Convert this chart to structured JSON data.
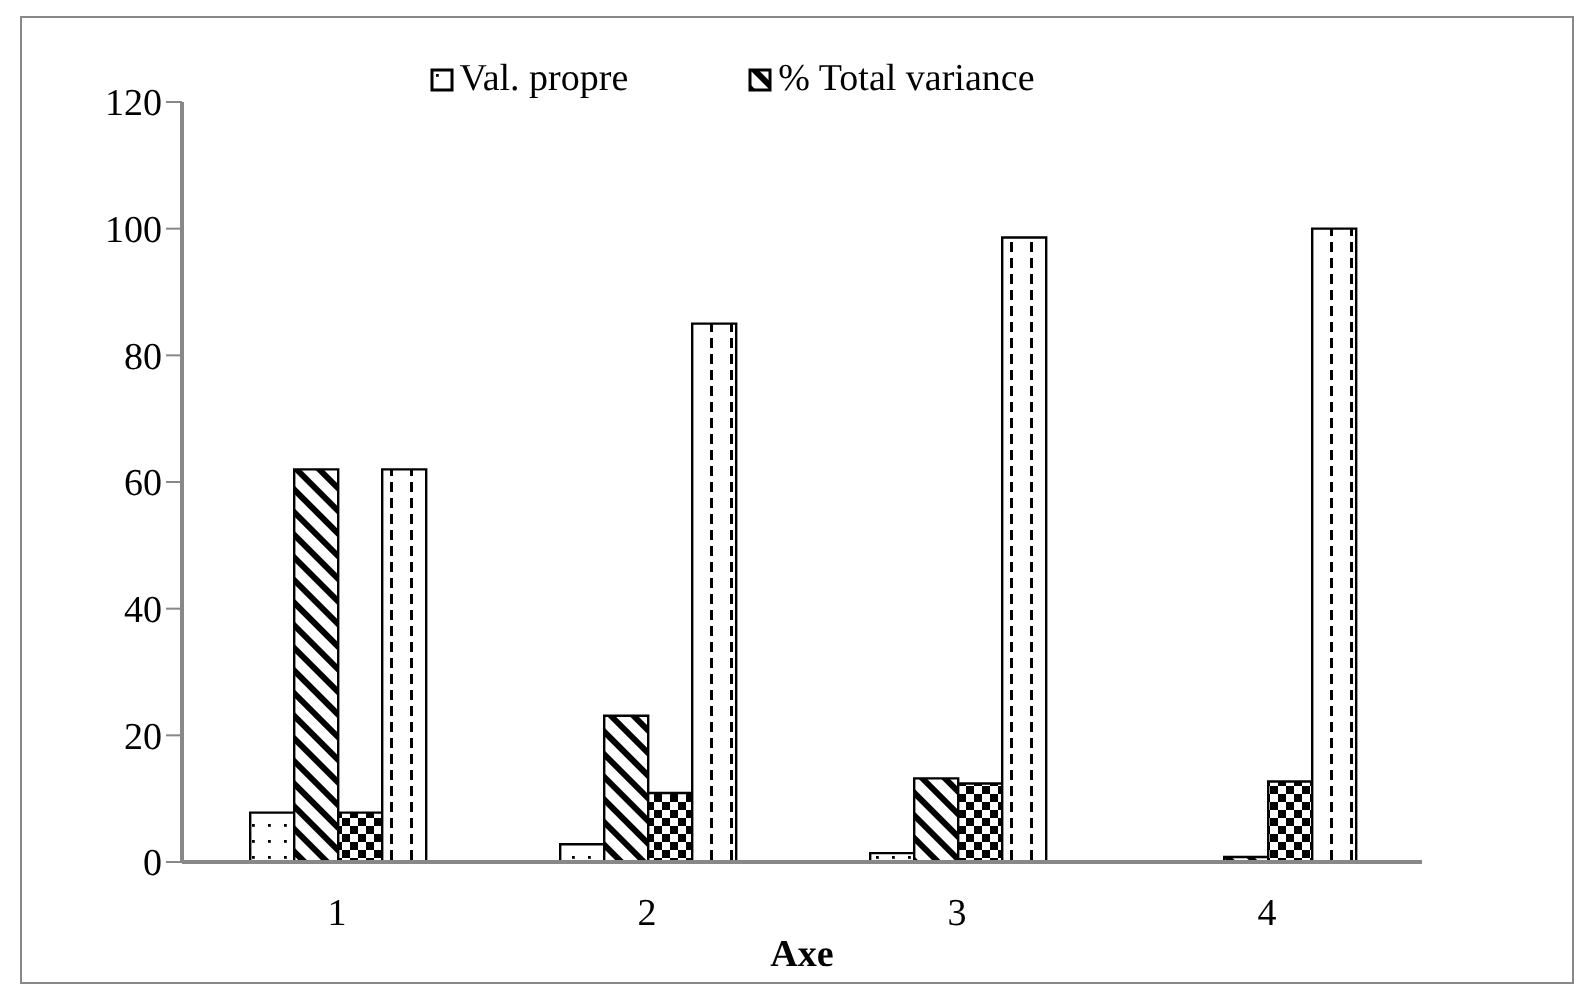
{
  "chart_data": {
    "type": "bar",
    "xlabel": "Axe",
    "categories": [
      "1",
      "2",
      "3",
      "4"
    ],
    "series": [
      {
        "name": "Val. propre",
        "color": "#000000",
        "values": [
          7.8,
          2.8,
          1.4,
          null
        ]
      },
      {
        "name": "% Total variance",
        "color": "#000000",
        "values": [
          62,
          23.1,
          13.2,
          0.8
        ]
      },
      {
        "color": "#000000",
        "values": [
          7.8,
          10.9,
          12.4,
          12.7
        ]
      },
      {
        "color": "#000000",
        "values": [
          62,
          85,
          98.6,
          100
        ]
      }
    ],
    "ylim": [
      0,
      120
    ],
    "yticks": [
      0,
      20,
      40,
      60,
      80,
      100,
      120
    ],
    "legend": "top"
  }
}
